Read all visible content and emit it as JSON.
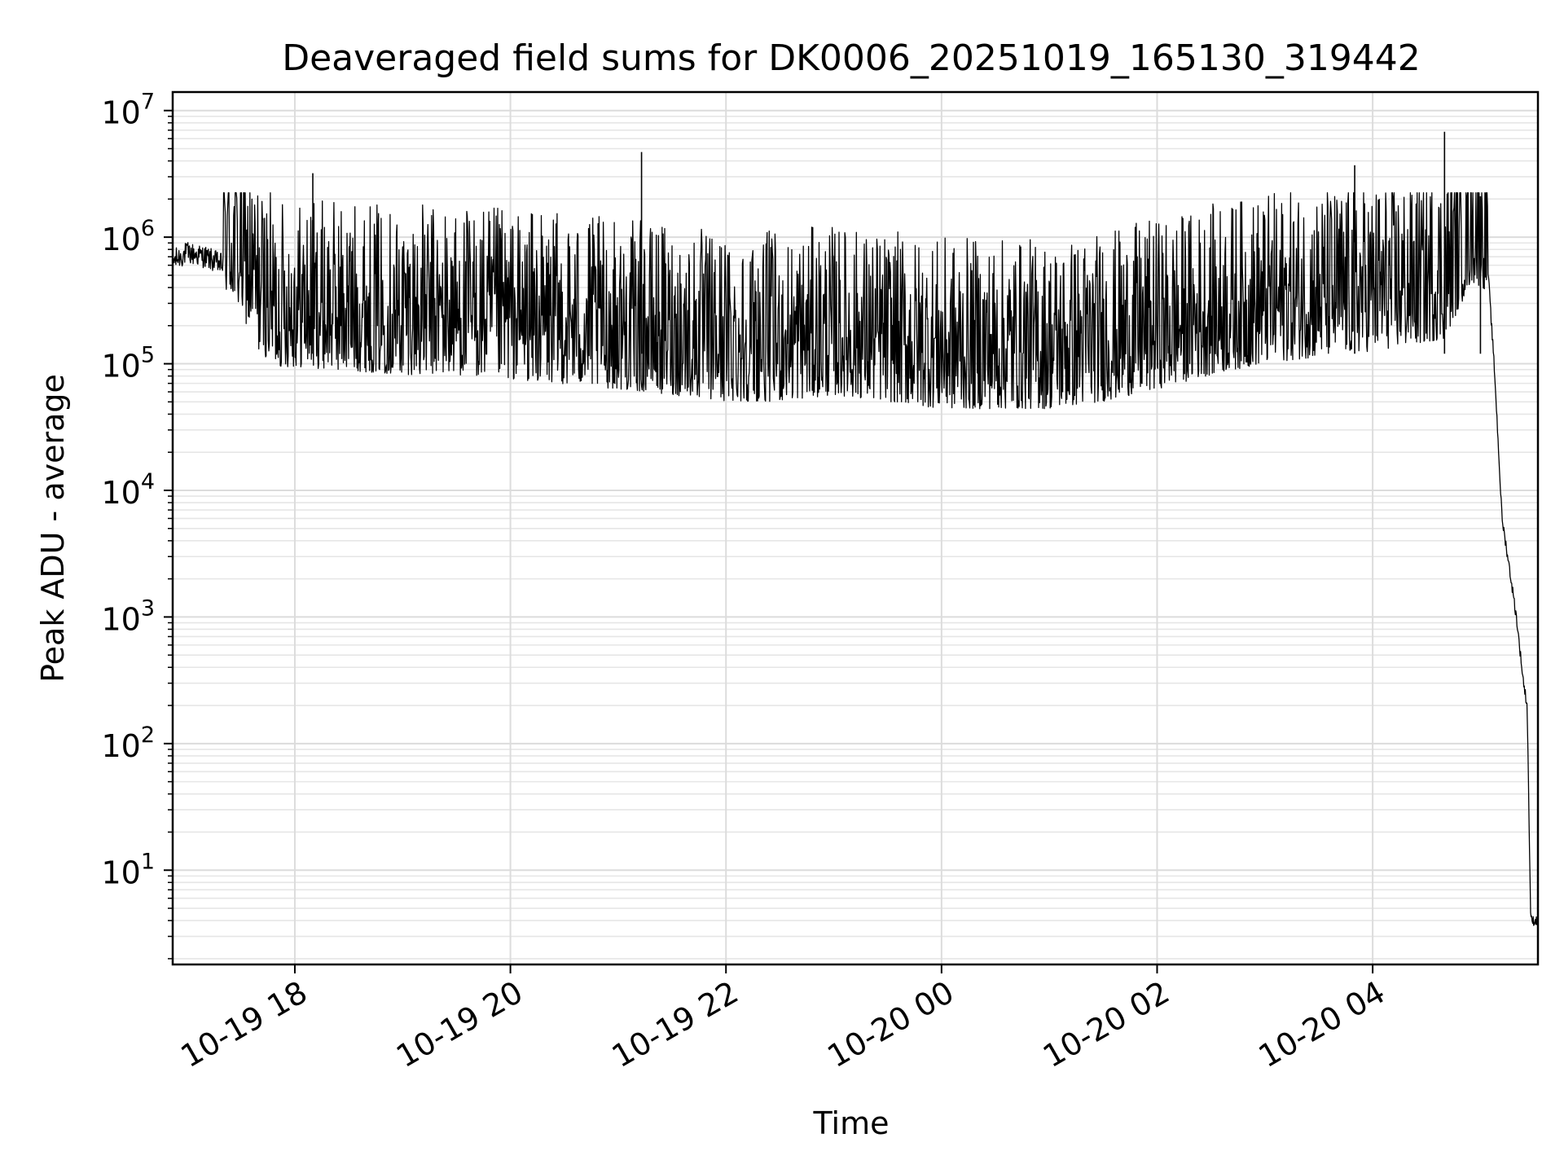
{
  "chart_data": {
    "type": "line",
    "title": "Deaveraged field sums for DK0006_20251019_165130_319442",
    "xlabel": "Time",
    "ylabel": "Peak ADU - average",
    "yscale": "log",
    "grid": true,
    "grid_minor": true,
    "ylim": [
      1.8,
      14000000
    ],
    "xlim": [
      "2025-10-19 16:52",
      "2025-10-20 05:32"
    ],
    "xticks": [
      {
        "value": "2025-10-19 18:00",
        "label": "10-19 18"
      },
      {
        "value": "2025-10-19 20:00",
        "label": "10-19 20"
      },
      {
        "value": "2025-10-19 22:00",
        "label": "10-19 22"
      },
      {
        "value": "2025-10-20 00:00",
        "label": "10-20 00"
      },
      {
        "value": "2025-10-20 02:00",
        "label": "10-20 02"
      },
      {
        "value": "2025-10-20 04:00",
        "label": "10-20 04"
      }
    ],
    "yticks": [
      {
        "base": "10",
        "exp": "1",
        "value": 10
      },
      {
        "base": "10",
        "exp": "2",
        "value": 100
      },
      {
        "base": "10",
        "exp": "3",
        "value": 1000
      },
      {
        "base": "10",
        "exp": "4",
        "value": 10000
      },
      {
        "base": "10",
        "exp": "5",
        "value": 100000
      },
      {
        "base": "10",
        "exp": "6",
        "value": 1000000
      },
      {
        "base": "10",
        "exp": "7",
        "value": 10000000
      }
    ],
    "series": [
      {
        "color": "#000000",
        "x": [
          "2025-10-19 16:52",
          "2025-10-19 17:00",
          "2025-10-19 17:10",
          "2025-10-19 17:20",
          "2025-10-19 17:30",
          "2025-10-19 17:40",
          "2025-10-19 17:50",
          "2025-10-19 18:00",
          "2025-10-19 18:30",
          "2025-10-19 19:00",
          "2025-10-19 19:30",
          "2025-10-19 20:00",
          "2025-10-19 20:30",
          "2025-10-19 21:00",
          "2025-10-19 21:30",
          "2025-10-19 22:00",
          "2025-10-19 22:30",
          "2025-10-19 23:00",
          "2025-10-19 23:30",
          "2025-10-20 00:00",
          "2025-10-20 00:30",
          "2025-10-20 01:00",
          "2025-10-20 01:30",
          "2025-10-20 02:00",
          "2025-10-20 02:30",
          "2025-10-20 03:00",
          "2025-10-20 03:30",
          "2025-10-20 04:00",
          "2025-10-20 04:20",
          "2025-10-20 04:40",
          "2025-10-20 04:55",
          "2025-10-20 05:04",
          "2025-10-20 05:08",
          "2025-10-20 05:12",
          "2025-10-20 05:16",
          "2025-10-20 05:20",
          "2025-10-20 05:24",
          "2025-10-20 05:26",
          "2025-10-20 05:28",
          "2025-10-20 05:32"
        ],
        "y": [
          650000,
          750000,
          700000,
          600000,
          400000,
          200000,
          150000,
          150000,
          140000,
          130000,
          130000,
          120000,
          110000,
          100000,
          90000,
          80000,
          80000,
          90000,
          80000,
          70000,
          70000,
          70000,
          80000,
          100000,
          130000,
          160000,
          180000,
          200000,
          220000,
          250000,
          700000,
          600000,
          80000,
          6000,
          2500,
          1000,
          300,
          200,
          4,
          4
        ]
      }
    ],
    "spikes": [
      {
        "x": "2025-10-19 18:10",
        "y": 3200000
      },
      {
        "x": "2025-10-19 21:13",
        "y": 4700000
      },
      {
        "x": "2025-10-20 03:50",
        "y": 3700000
      },
      {
        "x": "2025-10-20 04:40",
        "y": 6800000
      },
      {
        "x": "2025-10-20 05:00",
        "y": 2100000
      }
    ]
  }
}
